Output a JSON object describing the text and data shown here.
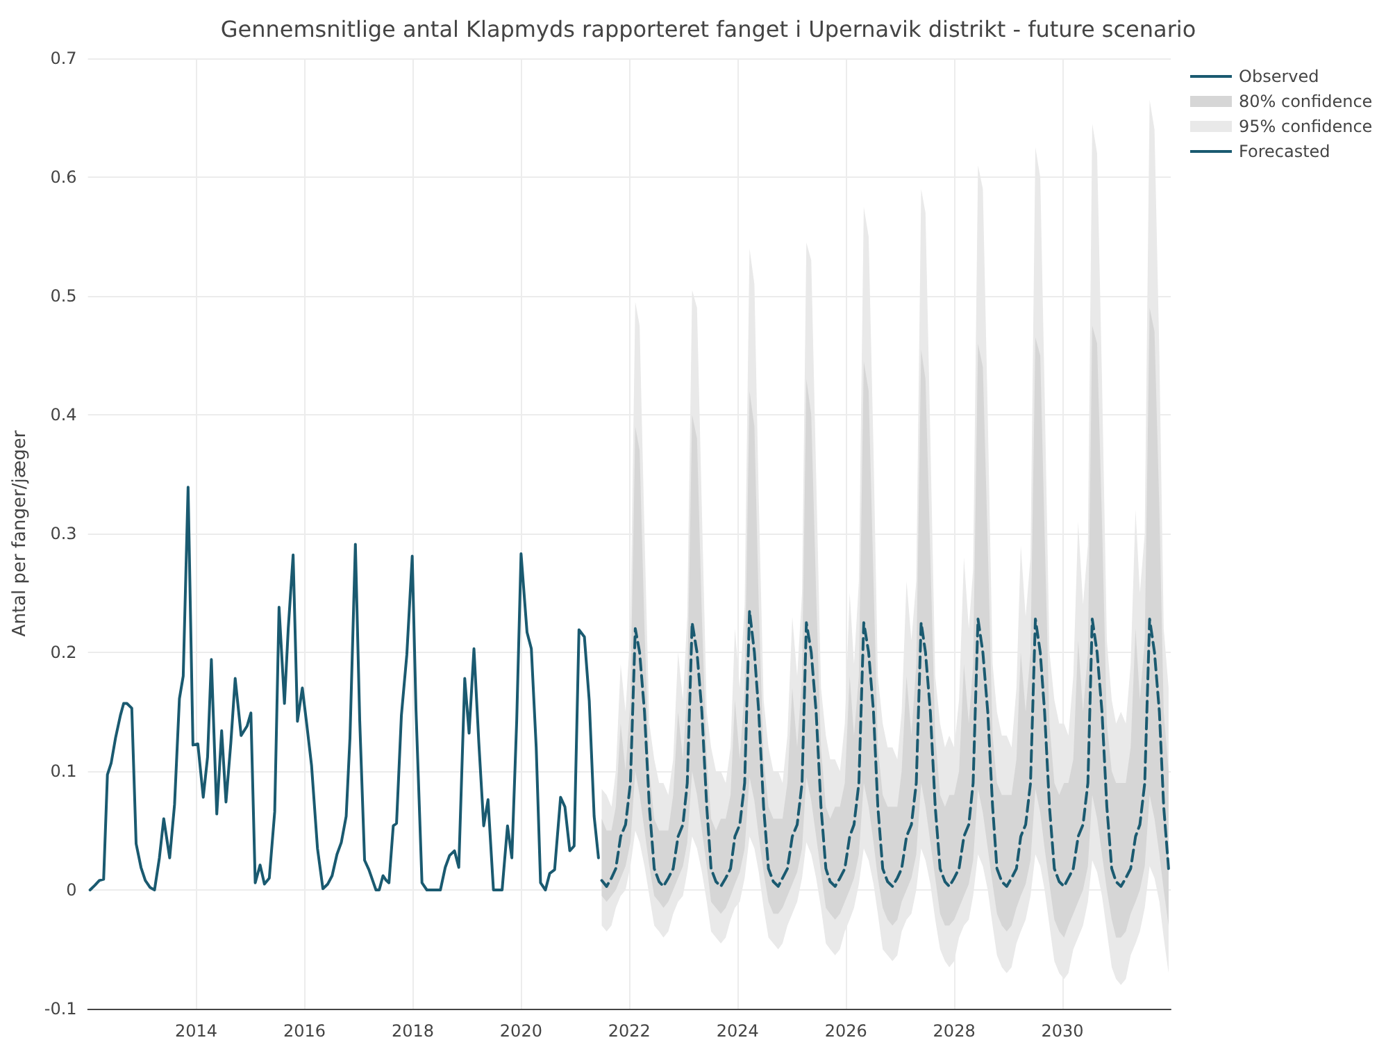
{
  "chart_data": {
    "type": "line",
    "title": "Gennemsnitlige antal Klapmyds rapporteret fanget i Upernavik distrikt - future scenario",
    "ylabel": "Antal per fanger/jæger",
    "xlim": [
      2012,
      2032
    ],
    "xticks": [
      2014,
      2016,
      2018,
      2020,
      2022,
      2024,
      2026,
      2028,
      2030
    ],
    "ylim": [
      -0.1,
      0.7
    ],
    "yticks": [
      -0.1,
      0,
      0.1,
      0.2,
      0.3,
      0.4,
      0.5,
      0.6,
      0.7
    ],
    "grid": true,
    "legend": "top right",
    "series": [
      {
        "name": "Observed",
        "type": "line",
        "color": "#1a5a70",
        "x": [
          2012.04,
          2012.13,
          2012.21,
          2012.29,
          2012.36,
          2012.43,
          2012.51,
          2012.6,
          2012.66,
          2012.72,
          2012.81,
          2012.89,
          2012.98,
          2013.06,
          2013.15,
          2013.23,
          2013.32,
          2013.4,
          2013.51,
          2013.6,
          2013.69,
          2013.76,
          2013.85,
          2013.94,
          2014.03,
          2014.13,
          2014.21,
          2014.28,
          2014.38,
          2014.47,
          2014.55,
          2014.64,
          2014.72,
          2014.83,
          2014.94,
          2015.01,
          2015.09,
          2015.18,
          2015.26,
          2015.35,
          2015.45,
          2015.53,
          2015.63,
          2015.7,
          2015.79,
          2015.87,
          2015.96,
          2016.04,
          2016.13,
          2016.24,
          2016.34,
          2016.43,
          2016.51,
          2016.6,
          2016.68,
          2016.77,
          2016.84,
          2016.94,
          2017.02,
          2017.11,
          2017.19,
          2017.32,
          2017.38,
          2017.45,
          2017.51,
          2017.56,
          2017.64,
          2017.7,
          2017.79,
          2017.89,
          2017.99,
          2018.06,
          2018.17,
          2018.26,
          2018.51,
          2018.6,
          2018.68,
          2018.77,
          2018.85,
          2018.96,
          2019.04,
          2019.13,
          2019.22,
          2019.31,
          2019.39,
          2019.49,
          2019.65,
          2019.75,
          2019.83,
          2019.92,
          2020.0,
          2020.11,
          2020.19,
          2020.28,
          2020.36,
          2020.45,
          2020.53,
          2020.62,
          2020.73,
          2020.81,
          2020.9,
          2020.98,
          2021.07,
          2021.17,
          2021.26,
          2021.35,
          2021.43
        ],
        "values": [
          0,
          0.004,
          0.008,
          0.009,
          0.097,
          0.107,
          0.128,
          0.147,
          0.157,
          0.157,
          0.153,
          0.039,
          0.019,
          0.008,
          0.002,
          0,
          0.027,
          0.06,
          0.027,
          0.072,
          0.161,
          0.18,
          0.339,
          0.122,
          0.123,
          0.078,
          0.112,
          0.194,
          0.064,
          0.134,
          0.074,
          0.124,
          0.178,
          0.13,
          0.138,
          0.149,
          0.006,
          0.021,
          0.005,
          0.01,
          0.066,
          0.238,
          0.157,
          0.22,
          0.282,
          0.142,
          0.17,
          0.14,
          0.105,
          0.035,
          0.001,
          0.005,
          0.012,
          0.03,
          0.04,
          0.062,
          0.128,
          0.291,
          0.143,
          0.025,
          0.017,
          0,
          0,
          0.012,
          0.008,
          0.006,
          0.054,
          0.056,
          0.147,
          0.198,
          0.281,
          0.151,
          0.006,
          0,
          0,
          0.019,
          0.029,
          0.033,
          0.019,
          0.178,
          0.132,
          0.203,
          0.124,
          0.054,
          0.076,
          0,
          0,
          0.054,
          0.027,
          0.143,
          0.283,
          0.217,
          0.203,
          0.12,
          0.006,
          0,
          0.014,
          0.017,
          0.078,
          0.07,
          0.033,
          0.037,
          0.219,
          0.213,
          0.159,
          0.062,
          0.027
        ]
      },
      {
        "name": "80% confidence",
        "type": "line",
        "color": "#d6d6d6",
        "values": [
          null,
          null,
          null,
          null,
          null,
          null,
          null,
          null,
          null,
          null,
          null,
          null,
          null,
          null,
          null,
          null,
          null,
          null,
          null,
          null,
          null,
          null,
          null,
          null,
          null,
          null,
          null,
          null,
          null,
          null,
          null,
          null,
          null,
          null,
          null,
          null,
          null,
          null,
          null,
          null,
          null,
          null,
          null,
          null,
          null,
          null,
          null,
          null,
          null,
          null,
          null,
          null,
          null,
          null,
          null,
          null,
          null,
          null,
          null,
          null,
          null,
          null,
          null,
          null,
          null,
          null,
          null,
          null,
          null,
          null,
          null,
          null,
          null,
          null,
          null,
          null,
          null,
          null,
          null,
          null,
          null,
          null,
          null,
          null,
          null,
          null,
          null,
          null,
          null,
          null,
          null,
          null,
          null,
          null,
          null,
          null,
          null,
          null,
          null,
          null,
          null,
          null,
          null,
          null,
          null,
          null,
          null,
          null,
          null,
          null,
          null,
          null,
          null,
          null,
          null,
          null,
          null,
          null,
          null,
          null
        ],
        "x": [
          2021.49,
          2021.58,
          2021.67,
          2021.75,
          2021.84,
          2021.93,
          2022.02,
          2022.11,
          2022.19,
          2022.28,
          2022.37,
          2022.46,
          2022.55,
          2022.63,
          2022.72,
          2022.81,
          2022.9,
          2022.99,
          2023.07,
          2023.16,
          2023.25,
          2023.34,
          2023.43,
          2023.51,
          2023.6,
          2023.69,
          2023.78,
          2023.87,
          2023.95,
          2024.04,
          2024.13,
          2024.22,
          2024.31,
          2024.39,
          2024.48,
          2024.57,
          2024.66,
          2024.75,
          2024.83,
          2024.92,
          2025.01,
          2025.1,
          2025.19,
          2025.27,
          2025.36,
          2025.45,
          2025.54,
          2025.63,
          2025.71,
          2025.8,
          2025.89,
          2025.98,
          2026.07,
          2026.15,
          2026.24,
          2026.33,
          2026.42,
          2026.51,
          2026.59,
          2026.68,
          2026.77,
          2026.86,
          2026.95,
          2027.03,
          2027.12,
          2027.21,
          2027.3,
          2027.39,
          2027.47,
          2027.56,
          2027.65,
          2027.74,
          2027.83,
          2027.91,
          2028.0,
          2028.09,
          2028.18,
          2028.27,
          2028.35,
          2028.44,
          2028.53,
          2028.62,
          2028.71,
          2028.79,
          2028.88,
          2028.97,
          2029.06,
          2029.15,
          2029.23,
          2029.32,
          2029.41,
          2029.5,
          2029.59,
          2029.67,
          2029.76,
          2029.85,
          2029.94,
          2030.03,
          2030.11,
          2030.2,
          2030.29,
          2030.38,
          2030.47,
          2030.55,
          2030.64,
          2030.73,
          2030.82,
          2030.91,
          2030.99,
          2031.08,
          2031.17,
          2031.26,
          2031.35,
          2031.43,
          2031.52,
          2031.61,
          2031.7,
          2031.79,
          2031.87,
          2031.96
        ],
        "lower": [
          -0.005,
          -0.01,
          -0.005,
          0,
          0.01,
          0.02,
          0.04,
          0.1,
          0.08,
          0.05,
          0.02,
          -0.005,
          -0.01,
          -0.015,
          -0.01,
          0,
          0.01,
          0.02,
          0.04,
          0.1,
          0.08,
          0.05,
          0.02,
          -0.01,
          -0.015,
          -0.02,
          -0.015,
          -0.005,
          0.005,
          0.015,
          0.035,
          0.095,
          0.075,
          0.045,
          0.015,
          -0.01,
          -0.02,
          -0.02,
          -0.015,
          -0.005,
          0.005,
          0.015,
          0.035,
          0.095,
          0.075,
          0.045,
          0.015,
          -0.015,
          -0.02,
          -0.025,
          -0.02,
          -0.01,
          0,
          0.01,
          0.03,
          0.09,
          0.07,
          0.04,
          0.01,
          -0.015,
          -0.025,
          -0.03,
          -0.025,
          -0.01,
          0,
          0.01,
          0.03,
          0.09,
          0.07,
          0.04,
          0.01,
          -0.02,
          -0.03,
          -0.03,
          -0.025,
          -0.015,
          -0.005,
          0.005,
          0.025,
          0.085,
          0.065,
          0.035,
          0.005,
          -0.02,
          -0.03,
          -0.035,
          -0.03,
          -0.015,
          -0.005,
          0.005,
          0.025,
          0.085,
          0.065,
          0.035,
          0.005,
          -0.025,
          -0.035,
          -0.04,
          -0.03,
          -0.02,
          -0.01,
          0,
          0.02,
          0.08,
          0.06,
          0.03,
          0,
          -0.025,
          -0.04,
          -0.04,
          -0.035,
          -0.02,
          -0.01,
          0,
          0.02,
          0.08,
          0.06,
          0.03,
          0,
          -0.03
        ],
        "upper": [
          0.06,
          0.05,
          0.05,
          0.07,
          0.14,
          0.1,
          0.16,
          0.39,
          0.37,
          0.22,
          0.1,
          0.06,
          0.05,
          0.05,
          0.05,
          0.08,
          0.15,
          0.11,
          0.17,
          0.4,
          0.38,
          0.23,
          0.11,
          0.06,
          0.05,
          0.06,
          0.06,
          0.08,
          0.16,
          0.11,
          0.17,
          0.42,
          0.39,
          0.24,
          0.11,
          0.07,
          0.06,
          0.06,
          0.06,
          0.09,
          0.17,
          0.12,
          0.18,
          0.43,
          0.4,
          0.25,
          0.12,
          0.07,
          0.06,
          0.07,
          0.07,
          0.09,
          0.18,
          0.13,
          0.18,
          0.445,
          0.42,
          0.26,
          0.12,
          0.08,
          0.07,
          0.07,
          0.07,
          0.1,
          0.18,
          0.13,
          0.19,
          0.455,
          0.43,
          0.28,
          0.13,
          0.08,
          0.07,
          0.08,
          0.08,
          0.1,
          0.19,
          0.14,
          0.19,
          0.46,
          0.44,
          0.29,
          0.13,
          0.09,
          0.08,
          0.08,
          0.08,
          0.11,
          0.2,
          0.15,
          0.2,
          0.465,
          0.45,
          0.3,
          0.14,
          0.09,
          0.08,
          0.09,
          0.09,
          0.11,
          0.21,
          0.15,
          0.2,
          0.475,
          0.46,
          0.31,
          0.14,
          0.1,
          0.09,
          0.09,
          0.09,
          0.12,
          0.22,
          0.16,
          0.21,
          0.49,
          0.47,
          0.32,
          0.15,
          0.1
        ]
      },
      {
        "name": "95% confidence",
        "type": "line",
        "color": "#e9e9e9",
        "values": [
          null,
          null,
          null,
          null,
          null,
          null,
          null,
          null,
          null,
          null,
          null,
          null,
          null,
          null,
          null,
          null,
          null,
          null,
          null,
          null,
          null,
          null,
          null,
          null,
          null,
          null,
          null,
          null,
          null,
          null,
          null,
          null,
          null,
          null,
          null,
          null,
          null,
          null,
          null,
          null,
          null,
          null,
          null,
          null,
          null,
          null,
          null,
          null,
          null,
          null,
          null,
          null,
          null,
          null,
          null,
          null,
          null,
          null,
          null,
          null,
          null,
          null,
          null,
          null,
          null,
          null,
          null,
          null,
          null,
          null,
          null,
          null,
          null,
          null,
          null,
          null,
          null,
          null,
          null,
          null,
          null,
          null,
          null,
          null,
          null,
          null,
          null,
          null,
          null,
          null,
          null,
          null,
          null,
          null,
          null,
          null,
          null,
          null,
          null,
          null,
          null,
          null,
          null,
          null,
          null,
          null,
          null,
          null,
          null,
          null,
          null,
          null,
          null,
          null,
          null,
          null,
          null,
          null,
          null,
          null
        ],
        "x": [
          2021.49,
          2021.58,
          2021.67,
          2021.75,
          2021.84,
          2021.93,
          2022.02,
          2022.11,
          2022.19,
          2022.28,
          2022.37,
          2022.46,
          2022.55,
          2022.63,
          2022.72,
          2022.81,
          2022.9,
          2022.99,
          2023.07,
          2023.16,
          2023.25,
          2023.34,
          2023.43,
          2023.51,
          2023.6,
          2023.69,
          2023.78,
          2023.87,
          2023.95,
          2024.04,
          2024.13,
          2024.22,
          2024.31,
          2024.39,
          2024.48,
          2024.57,
          2024.66,
          2024.75,
          2024.83,
          2024.92,
          2025.01,
          2025.1,
          2025.19,
          2025.27,
          2025.36,
          2025.45,
          2025.54,
          2025.63,
          2025.71,
          2025.8,
          2025.89,
          2025.98,
          2026.07,
          2026.15,
          2026.24,
          2026.33,
          2026.42,
          2026.51,
          2026.59,
          2026.68,
          2026.77,
          2026.86,
          2026.95,
          2027.03,
          2027.12,
          2027.21,
          2027.3,
          2027.39,
          2027.47,
          2027.56,
          2027.65,
          2027.74,
          2027.83,
          2027.91,
          2028.0,
          2028.09,
          2028.18,
          2028.27,
          2028.35,
          2028.44,
          2028.53,
          2028.62,
          2028.71,
          2028.79,
          2028.88,
          2028.97,
          2029.06,
          2029.15,
          2029.23,
          2029.32,
          2029.41,
          2029.5,
          2029.59,
          2029.67,
          2029.76,
          2029.85,
          2029.94,
          2030.03,
          2030.11,
          2030.2,
          2030.29,
          2030.38,
          2030.47,
          2030.55,
          2030.64,
          2030.73,
          2030.82,
          2030.91,
          2030.99,
          2031.08,
          2031.17,
          2031.26,
          2031.35,
          2031.43,
          2031.52,
          2031.61,
          2031.7,
          2031.79,
          2031.87,
          2031.96
        ],
        "lower": [
          -0.03,
          -0.035,
          -0.03,
          -0.015,
          -0.005,
          0,
          0.02,
          0.05,
          0.04,
          0.02,
          -0.005,
          -0.03,
          -0.035,
          -0.04,
          -0.035,
          -0.02,
          -0.01,
          -0.005,
          0.015,
          0.045,
          0.035,
          0.015,
          -0.01,
          -0.035,
          -0.04,
          -0.045,
          -0.04,
          -0.025,
          -0.015,
          -0.01,
          0.01,
          0.045,
          0.035,
          0.015,
          -0.015,
          -0.04,
          -0.045,
          -0.05,
          -0.045,
          -0.03,
          -0.02,
          -0.01,
          0.01,
          0.04,
          0.03,
          0.01,
          -0.015,
          -0.045,
          -0.05,
          -0.055,
          -0.05,
          -0.035,
          -0.025,
          -0.015,
          0.005,
          0.035,
          0.025,
          0.005,
          -0.02,
          -0.05,
          -0.055,
          -0.06,
          -0.055,
          -0.035,
          -0.025,
          -0.02,
          0,
          0.035,
          0.025,
          0.005,
          -0.025,
          -0.05,
          -0.06,
          -0.065,
          -0.06,
          -0.04,
          -0.03,
          -0.025,
          -0.005,
          0.03,
          0.02,
          0,
          -0.03,
          -0.055,
          -0.065,
          -0.07,
          -0.065,
          -0.045,
          -0.035,
          -0.025,
          -0.005,
          0.03,
          0.02,
          0,
          -0.03,
          -0.06,
          -0.07,
          -0.075,
          -0.07,
          -0.05,
          -0.04,
          -0.03,
          -0.01,
          0.025,
          0.015,
          -0.005,
          -0.035,
          -0.065,
          -0.075,
          -0.08,
          -0.075,
          -0.055,
          -0.045,
          -0.035,
          -0.015,
          0.02,
          0.01,
          -0.01,
          -0.04,
          -0.07
        ],
        "upper": [
          0.085,
          0.08,
          0.07,
          0.1,
          0.19,
          0.15,
          0.22,
          0.495,
          0.475,
          0.3,
          0.14,
          0.11,
          0.09,
          0.09,
          0.08,
          0.11,
          0.2,
          0.16,
          0.23,
          0.505,
          0.49,
          0.32,
          0.15,
          0.12,
          0.1,
          0.1,
          0.09,
          0.12,
          0.22,
          0.17,
          0.24,
          0.54,
          0.51,
          0.33,
          0.16,
          0.12,
          0.1,
          0.1,
          0.09,
          0.13,
          0.23,
          0.18,
          0.25,
          0.545,
          0.53,
          0.35,
          0.17,
          0.13,
          0.11,
          0.11,
          0.1,
          0.14,
          0.25,
          0.19,
          0.26,
          0.575,
          0.55,
          0.37,
          0.18,
          0.14,
          0.12,
          0.12,
          0.11,
          0.15,
          0.26,
          0.21,
          0.26,
          0.59,
          0.57,
          0.38,
          0.18,
          0.14,
          0.12,
          0.13,
          0.12,
          0.16,
          0.28,
          0.22,
          0.27,
          0.61,
          0.59,
          0.4,
          0.19,
          0.15,
          0.13,
          0.13,
          0.12,
          0.17,
          0.29,
          0.23,
          0.28,
          0.625,
          0.6,
          0.42,
          0.2,
          0.16,
          0.14,
          0.14,
          0.13,
          0.18,
          0.31,
          0.24,
          0.29,
          0.645,
          0.62,
          0.43,
          0.21,
          0.16,
          0.14,
          0.15,
          0.14,
          0.19,
          0.32,
          0.25,
          0.3,
          0.665,
          0.64,
          0.45,
          0.22,
          0.17
        ]
      },
      {
        "name": "Forecasted",
        "type": "line",
        "line_style": "dashed",
        "color": "#1a5a70",
        "x": [
          2021.49,
          2021.58,
          2021.67,
          2021.75,
          2021.84,
          2021.93,
          2022.02,
          2022.11,
          2022.19,
          2022.28,
          2022.37,
          2022.46,
          2022.55,
          2022.63,
          2022.72,
          2022.81,
          2022.9,
          2022.99,
          2023.07,
          2023.16,
          2023.25,
          2023.34,
          2023.43,
          2023.51,
          2023.6,
          2023.69,
          2023.78,
          2023.87,
          2023.95,
          2024.04,
          2024.13,
          2024.22,
          2024.31,
          2024.39,
          2024.48,
          2024.57,
          2024.66,
          2024.75,
          2024.83,
          2024.92,
          2025.01,
          2025.1,
          2025.19,
          2025.27,
          2025.36,
          2025.45,
          2025.54,
          2025.63,
          2025.71,
          2025.8,
          2025.89,
          2025.98,
          2026.07,
          2026.15,
          2026.24,
          2026.33,
          2026.42,
          2026.51,
          2026.59,
          2026.68,
          2026.77,
          2026.86,
          2026.95,
          2027.03,
          2027.12,
          2027.21,
          2027.3,
          2027.39,
          2027.47,
          2027.56,
          2027.65,
          2027.74,
          2027.83,
          2027.91,
          2028.0,
          2028.09,
          2028.18,
          2028.27,
          2028.35,
          2028.44,
          2028.53,
          2028.62,
          2028.71,
          2028.79,
          2028.88,
          2028.97,
          2029.06,
          2029.15,
          2029.23,
          2029.32,
          2029.41,
          2029.5,
          2029.59,
          2029.67,
          2029.76,
          2029.85,
          2029.94,
          2030.03,
          2030.11,
          2030.2,
          2030.29,
          2030.38,
          2030.47,
          2030.55,
          2030.64,
          2030.73,
          2030.82,
          2030.91,
          2030.99,
          2031.08,
          2031.17,
          2031.26,
          2031.35,
          2031.43,
          2031.52,
          2031.61,
          2031.7,
          2031.79,
          2031.87,
          2031.96
        ],
        "values": [
          0.008,
          0.003,
          0.01,
          0.018,
          0.045,
          0.055,
          0.09,
          0.22,
          0.2,
          0.15,
          0.07,
          0.018,
          0.007,
          0.003,
          0.01,
          0.018,
          0.045,
          0.055,
          0.09,
          0.225,
          0.2,
          0.15,
          0.07,
          0.018,
          0.007,
          0.003,
          0.01,
          0.018,
          0.045,
          0.055,
          0.09,
          0.235,
          0.2,
          0.15,
          0.07,
          0.018,
          0.007,
          0.003,
          0.01,
          0.018,
          0.045,
          0.055,
          0.09,
          0.225,
          0.2,
          0.15,
          0.07,
          0.018,
          0.007,
          0.003,
          0.01,
          0.018,
          0.045,
          0.055,
          0.09,
          0.225,
          0.2,
          0.15,
          0.07,
          0.018,
          0.007,
          0.003,
          0.01,
          0.018,
          0.045,
          0.055,
          0.09,
          0.225,
          0.2,
          0.15,
          0.07,
          0.018,
          0.007,
          0.003,
          0.01,
          0.018,
          0.045,
          0.055,
          0.09,
          0.228,
          0.2,
          0.15,
          0.07,
          0.018,
          0.007,
          0.003,
          0.01,
          0.018,
          0.045,
          0.055,
          0.09,
          0.228,
          0.2,
          0.15,
          0.07,
          0.018,
          0.007,
          0.003,
          0.01,
          0.018,
          0.045,
          0.055,
          0.09,
          0.228,
          0.2,
          0.15,
          0.07,
          0.018,
          0.007,
          0.003,
          0.01,
          0.018,
          0.045,
          0.055,
          0.09,
          0.228,
          0.2,
          0.15,
          0.07,
          0.018
        ]
      }
    ]
  }
}
